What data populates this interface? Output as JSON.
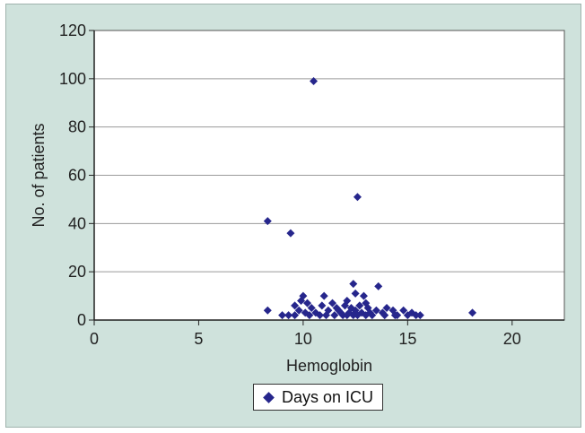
{
  "colors": {
    "background": "#cfe2dc",
    "plot_area": "#ffffff",
    "series": "#26268c",
    "grid": "#9a9a9a"
  },
  "chart_data": {
    "type": "scatter",
    "xlabel": "Hemoglobin",
    "ylabel": "No. of patients",
    "xlim": [
      0,
      22.5
    ],
    "ylim": [
      0,
      120
    ],
    "xticks": [
      0,
      5,
      10,
      15,
      20
    ],
    "yticks": [
      0,
      20,
      40,
      60,
      80,
      100,
      120
    ],
    "grid": "horizontal",
    "legend": "bottom-center",
    "marker": "diamond",
    "series": [
      {
        "name": "Days on ICU",
        "points": [
          [
            10.5,
            99
          ],
          [
            12.6,
            51
          ],
          [
            8.3,
            41
          ],
          [
            9.4,
            36
          ],
          [
            12.4,
            15
          ],
          [
            13.6,
            14
          ],
          [
            10.0,
            10
          ],
          [
            11.0,
            10
          ],
          [
            12.5,
            11
          ],
          [
            12.9,
            10
          ],
          [
            9.9,
            8
          ],
          [
            10.2,
            7
          ],
          [
            9.6,
            6
          ],
          [
            11.4,
            7
          ],
          [
            12.1,
            8
          ],
          [
            13.0,
            7
          ],
          [
            8.3,
            4
          ],
          [
            9.0,
            2
          ],
          [
            9.3,
            2
          ],
          [
            9.6,
            2
          ],
          [
            10.4,
            5
          ],
          [
            10.6,
            3
          ],
          [
            10.9,
            6
          ],
          [
            11.2,
            4
          ],
          [
            11.6,
            5
          ],
          [
            11.8,
            3
          ],
          [
            12.0,
            6
          ],
          [
            12.2,
            3
          ],
          [
            12.3,
            5
          ],
          [
            12.5,
            4
          ],
          [
            12.7,
            6
          ],
          [
            12.8,
            3
          ],
          [
            13.1,
            5
          ],
          [
            13.3,
            2
          ],
          [
            13.5,
            4
          ],
          [
            13.8,
            3
          ],
          [
            14.0,
            5
          ],
          [
            14.3,
            4
          ],
          [
            14.5,
            2
          ],
          [
            14.8,
            4
          ],
          [
            15.0,
            2
          ],
          [
            15.2,
            3
          ],
          [
            15.6,
            2
          ],
          [
            18.1,
            3
          ],
          [
            10.1,
            3
          ],
          [
            10.8,
            2
          ],
          [
            11.1,
            2
          ],
          [
            11.5,
            2
          ],
          [
            11.9,
            2
          ],
          [
            12.1,
            2
          ],
          [
            12.6,
            2
          ],
          [
            13.0,
            2
          ],
          [
            13.2,
            3
          ],
          [
            13.9,
            2
          ],
          [
            14.4,
            2
          ],
          [
            15.4,
            2
          ],
          [
            9.8,
            4
          ],
          [
            10.3,
            2
          ],
          [
            11.7,
            4
          ],
          [
            12.4,
            2
          ]
        ]
      }
    ]
  }
}
